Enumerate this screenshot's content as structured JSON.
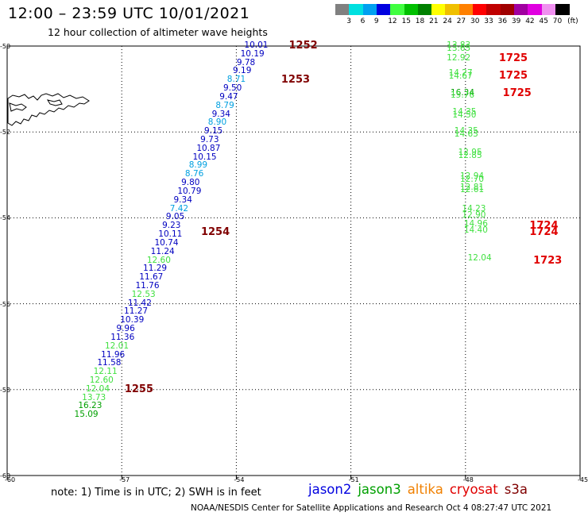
{
  "header": {
    "title": "12:00 – 23:59 UTC 10/01/2021",
    "subtitle": "12 hour collection of altimeter wave heights"
  },
  "color_scale": {
    "ticks": [
      "3",
      "6",
      "9",
      "12",
      "15",
      "18",
      "21",
      "24",
      "27",
      "30",
      "33",
      "36",
      "39",
      "42",
      "45",
      "70"
    ],
    "unit": "(ft)",
    "colors": [
      "#808080",
      "#00e0e0",
      "#00a0f0",
      "#0000e0",
      "#40ff40",
      "#00c000",
      "#008000",
      "#ffff00",
      "#f0c000",
      "#ff8000",
      "#ff0000",
      "#c00000",
      "#a00000",
      "#a000a0",
      "#e000e0",
      "#f090f0",
      "#000000"
    ]
  },
  "map": {
    "lon_ticks": [
      "-60",
      "-57",
      "-54",
      "-51",
      "-48",
      "-45"
    ],
    "lat_ticks": [
      "-50",
      "-52",
      "-54",
      "-56",
      "-58",
      "-60"
    ],
    "tracks": [
      {
        "time_labels": [
          {
            "text": "1252",
            "lon": -52.5,
            "lat": -50.0,
            "color": "#800000"
          },
          {
            "text": "1253",
            "lon": -52.7,
            "lat": -50.8,
            "color": "#800000"
          },
          {
            "text": "1254",
            "lon": -54.8,
            "lat": -54.35,
            "color": "#800000"
          },
          {
            "text": "1255",
            "lon": -56.8,
            "lat": -58.0,
            "color": "#800000"
          }
        ],
        "observations": [
          {
            "v": "10.01",
            "lon": -53.5,
            "lat": -50.0,
            "color": "#0000c0"
          },
          {
            "v": "10.19",
            "lon": -53.6,
            "lat": -50.2,
            "color": "#0000c0"
          },
          {
            "v": "9.78",
            "lon": -53.7,
            "lat": -50.4,
            "color": "#0000c0"
          },
          {
            "v": "9.19",
            "lon": -53.8,
            "lat": -50.6,
            "color": "#0000c0"
          },
          {
            "v": "8.71",
            "lon": -53.95,
            "lat": -50.8,
            "color": "#00a0e0"
          },
          {
            "v": "9.50",
            "lon": -54.05,
            "lat": -51.0,
            "color": "#0000c0"
          },
          {
            "v": "9.47",
            "lon": -54.15,
            "lat": -51.2,
            "color": "#0000c0"
          },
          {
            "v": "8.79",
            "lon": -54.25,
            "lat": -51.4,
            "color": "#00a0e0"
          },
          {
            "v": "9.34",
            "lon": -54.35,
            "lat": -51.6,
            "color": "#0000c0"
          },
          {
            "v": "8.90",
            "lon": -54.45,
            "lat": -51.8,
            "color": "#00a0e0"
          },
          {
            "v": "9.15",
            "lon": -54.55,
            "lat": -52.0,
            "color": "#0000c0"
          },
          {
            "v": "9.73",
            "lon": -54.65,
            "lat": -52.2,
            "color": "#0000c0"
          },
          {
            "v": "10.87",
            "lon": -54.75,
            "lat": -52.4,
            "color": "#0000c0"
          },
          {
            "v": "10.15",
            "lon": -54.85,
            "lat": -52.6,
            "color": "#0000c0"
          },
          {
            "v": "8.99",
            "lon": -54.95,
            "lat": -52.8,
            "color": "#00a0e0"
          },
          {
            "v": "8.76",
            "lon": -55.05,
            "lat": -53.0,
            "color": "#00a0e0"
          },
          {
            "v": "9.80",
            "lon": -55.15,
            "lat": -53.2,
            "color": "#0000c0"
          },
          {
            "v": "10.79",
            "lon": -55.25,
            "lat": -53.4,
            "color": "#0000c0"
          },
          {
            "v": "9.34",
            "lon": -55.35,
            "lat": -53.6,
            "color": "#0000c0"
          },
          {
            "v": "7.42",
            "lon": -55.45,
            "lat": -53.8,
            "color": "#00a0e0"
          },
          {
            "v": "9.05",
            "lon": -55.55,
            "lat": -54.0,
            "color": "#0000c0"
          },
          {
            "v": "9.23",
            "lon": -55.65,
            "lat": -54.2,
            "color": "#0000c0"
          },
          {
            "v": "10.11",
            "lon": -55.75,
            "lat": -54.4,
            "color": "#0000c0"
          },
          {
            "v": "10.74",
            "lon": -55.85,
            "lat": -54.6,
            "color": "#0000c0"
          },
          {
            "v": "11.24",
            "lon": -55.95,
            "lat": -54.8,
            "color": "#0000c0"
          },
          {
            "v": "12.60",
            "lon": -56.05,
            "lat": -55.0,
            "color": "#40e040"
          },
          {
            "v": "11.29",
            "lon": -56.15,
            "lat": -55.2,
            "color": "#0000c0"
          },
          {
            "v": "11.67",
            "lon": -56.25,
            "lat": -55.4,
            "color": "#0000c0"
          },
          {
            "v": "11.76",
            "lon": -56.35,
            "lat": -55.6,
            "color": "#0000c0"
          },
          {
            "v": "12.53",
            "lon": -56.45,
            "lat": -55.8,
            "color": "#40e040"
          },
          {
            "v": "11.42",
            "lon": -56.55,
            "lat": -56.0,
            "color": "#0000c0"
          },
          {
            "v": "11.27",
            "lon": -56.65,
            "lat": -56.2,
            "color": "#0000c0"
          },
          {
            "v": "10.39",
            "lon": -56.75,
            "lat": -56.4,
            "color": "#0000c0"
          },
          {
            "v": "9.96",
            "lon": -56.85,
            "lat": -56.6,
            "color": "#0000c0"
          },
          {
            "v": "11.36",
            "lon": -57.0,
            "lat": -56.8,
            "color": "#0000c0"
          },
          {
            "v": "12.01",
            "lon": -57.15,
            "lat": -57.0,
            "color": "#40e040"
          },
          {
            "v": "11.96",
            "lon": -57.25,
            "lat": -57.2,
            "color": "#0000c0"
          },
          {
            "v": "11.58",
            "lon": -57.35,
            "lat": -57.4,
            "color": "#0000c0"
          },
          {
            "v": "12.11",
            "lon": -57.45,
            "lat": -57.6,
            "color": "#40e040"
          },
          {
            "v": "12.60",
            "lon": -57.55,
            "lat": -57.8,
            "color": "#40e040"
          },
          {
            "v": "12.04",
            "lon": -57.65,
            "lat": -58.0,
            "color": "#40e040"
          },
          {
            "v": "13.73",
            "lon": -57.75,
            "lat": -58.2,
            "color": "#40e040"
          },
          {
            "v": "16.23",
            "lon": -57.85,
            "lat": -58.4,
            "color": "#00a000"
          },
          {
            "v": "15.09",
            "lon": -57.95,
            "lat": -58.6,
            "color": "#00a000"
          }
        ]
      },
      {
        "time_labels": [
          {
            "text": "1725",
            "lon": -47.0,
            "lat": -50.3,
            "color": "#e00000"
          },
          {
            "text": "1725",
            "lon": -47.0,
            "lat": -50.7,
            "color": "#e00000"
          },
          {
            "text": "1725",
            "lon": -46.9,
            "lat": -51.1,
            "color": "#e00000"
          },
          {
            "text": "1724",
            "lon": -46.2,
            "lat": -54.2,
            "color": "#e00000"
          },
          {
            "text": "1724",
            "lon": -46.2,
            "lat": -54.35,
            "color": "#e00000"
          },
          {
            "text": "1723",
            "lon": -46.1,
            "lat": -55.0,
            "color": "#e00000"
          }
        ],
        "observations": [
          {
            "v": "13.83",
            "lon": -48.2,
            "lat": -50.0,
            "color": "#40e040"
          },
          {
            "v": "13.65",
            "lon": -48.2,
            "lat": -50.08,
            "color": "#40e040"
          },
          {
            "v": "12.92",
            "lon": -48.2,
            "lat": -50.3,
            "color": "#40e040"
          },
          {
            "v": "14.27",
            "lon": -48.15,
            "lat": -50.65,
            "color": "#40e040"
          },
          {
            "v": "14.67",
            "lon": -48.15,
            "lat": -50.72,
            "color": "#40e040"
          },
          {
            "v": "16.34",
            "lon": -48.1,
            "lat": -51.1,
            "color": "#00a000"
          },
          {
            "v": "15.76",
            "lon": -48.1,
            "lat": -51.17,
            "color": "#40e040"
          },
          {
            "v": "14.35",
            "lon": -48.05,
            "lat": -51.55,
            "color": "#40e040"
          },
          {
            "v": "14.50",
            "lon": -48.05,
            "lat": -51.62,
            "color": "#40e040"
          },
          {
            "v": "14.35",
            "lon": -48.0,
            "lat": -52.0,
            "color": "#40e040"
          },
          {
            "v": "14.63",
            "lon": -48.0,
            "lat": -52.07,
            "color": "#40e040"
          },
          {
            "v": "12.95",
            "lon": -47.9,
            "lat": -52.5,
            "color": "#40e040"
          },
          {
            "v": "12.85",
            "lon": -47.9,
            "lat": -52.57,
            "color": "#40e040"
          },
          {
            "v": "12.94",
            "lon": -47.85,
            "lat": -53.05,
            "color": "#40e040"
          },
          {
            "v": "12.70",
            "lon": -47.85,
            "lat": -53.12,
            "color": "#40e040"
          },
          {
            "v": "12.81",
            "lon": -47.85,
            "lat": -53.3,
            "color": "#40e040"
          },
          {
            "v": "12.61",
            "lon": -47.85,
            "lat": -53.37,
            "color": "#40e040"
          },
          {
            "v": "14.23",
            "lon": -47.8,
            "lat": -53.8,
            "color": "#40e040"
          },
          {
            "v": "12.90",
            "lon": -47.8,
            "lat": -53.95,
            "color": "#40e040"
          },
          {
            "v": "14.96",
            "lon": -47.75,
            "lat": -54.15,
            "color": "#40e040"
          },
          {
            "v": "14.40",
            "lon": -47.75,
            "lat": -54.3,
            "color": "#40e040"
          },
          {
            "v": "12.04",
            "lon": -47.65,
            "lat": -54.95,
            "color": "#40e040"
          }
        ]
      }
    ]
  },
  "footer": {
    "note": "note:  1) Time is in UTC;  2) SWH is in feet",
    "satellites": [
      {
        "name": "jason2",
        "color": "#0000e0"
      },
      {
        "name": "jason3",
        "color": "#00a000"
      },
      {
        "name": "altika",
        "color": "#f08000"
      },
      {
        "name": "cryosat",
        "color": "#e00000"
      },
      {
        "name": "s3a",
        "color": "#800000"
      }
    ],
    "credit": "NOAA/NESDIS Center for Satellite Applications and Research    Oct  4 08:27:47 UTC 2021"
  }
}
